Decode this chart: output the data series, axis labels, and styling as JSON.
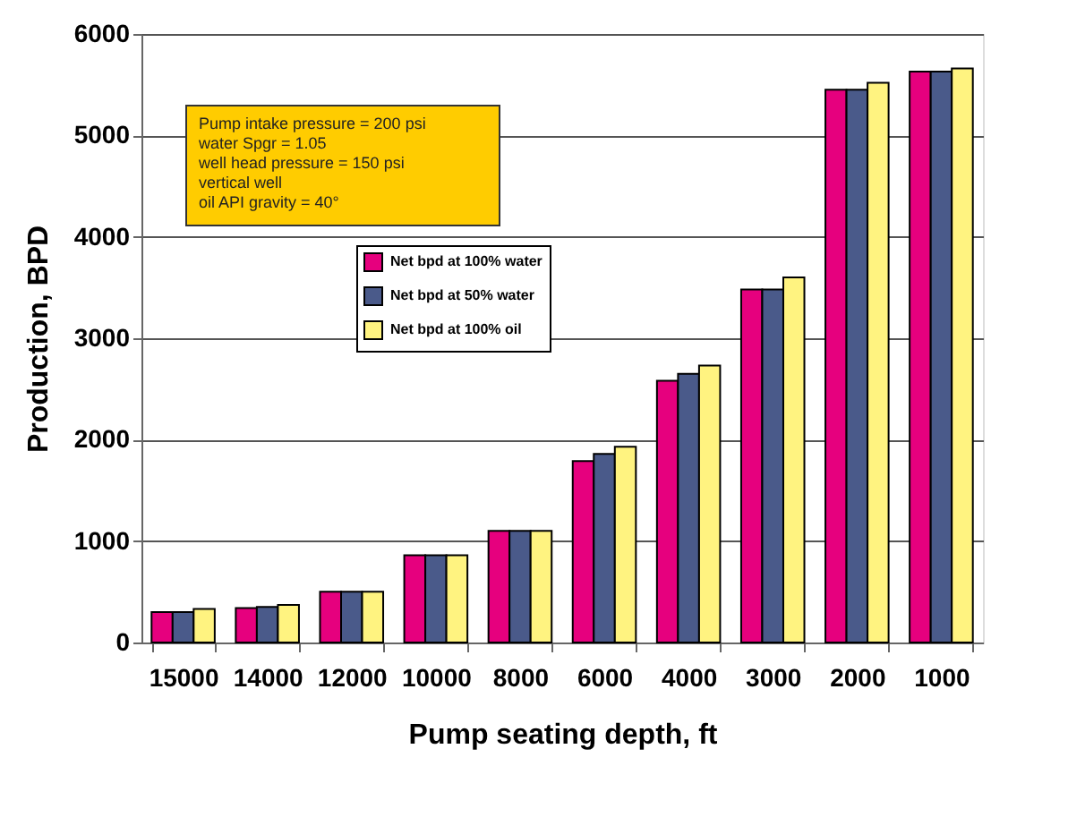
{
  "chart_data": {
    "type": "bar",
    "xlabel": "Pump seating depth, ft",
    "ylabel": "Production, BPD",
    "categories": [
      "15000",
      "14000",
      "12000",
      "10000",
      "8000",
      "6000",
      "4000",
      "3000",
      "2000",
      "1000"
    ],
    "series": [
      {
        "name": "Net bpd at 100% water",
        "color": "#e6007e",
        "values": [
          300,
          340,
          500,
          860,
          1100,
          1790,
          2580,
          3480,
          5450,
          5630
        ]
      },
      {
        "name": "Net bpd at 50% water",
        "color": "#4a5a8a",
        "values": [
          300,
          350,
          500,
          860,
          1100,
          1860,
          2650,
          3480,
          5450,
          5630
        ]
      },
      {
        "name": "Net bpd at 100% oil",
        "color": "#fff380",
        "values": [
          330,
          370,
          500,
          860,
          1100,
          1930,
          2730,
          3600,
          5520,
          5660
        ]
      }
    ],
    "ylim": [
      0,
      6000
    ],
    "yticks": [
      0,
      1000,
      2000,
      3000,
      4000,
      5000,
      6000
    ],
    "grid": "y",
    "legend": "top left",
    "annotations": [
      "Pump intake pressure = 200 psi\nwater Spgr = 1.05\nwell head pressure = 150 psi\nvertical well\noil API gravity = 40°"
    ]
  }
}
